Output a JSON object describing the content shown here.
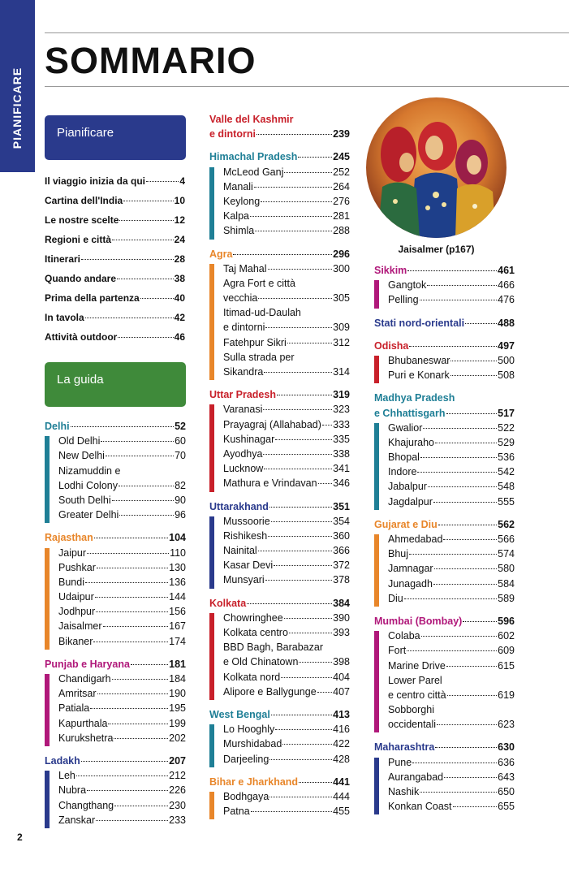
{
  "sidebar_tab": "PIANIFICARE",
  "title": "SOMMARIO",
  "page_number": "2",
  "colors": {
    "pianificare": "#2a3a8c",
    "guida": "#3f8a3a",
    "delhi": "#1f7f96",
    "rajasthan": "#e8862a",
    "punjab": "#b0187a",
    "ladakh": "#2a3a8c",
    "kashmir": "#c8202a",
    "himachal": "#1f7f96",
    "agra": "#e8862a",
    "uttar": "#c8202a",
    "uttarakhand": "#2a3a8c",
    "kolkata": "#c8202a",
    "westbengal": "#1f7f96",
    "bihar": "#e8862a",
    "sikkim": "#b0187a",
    "nordorientali": "#2a3a8c",
    "odisha": "#c8202a",
    "madhya": "#1f7f96",
    "gujarat": "#e8862a",
    "mumbai": "#b0187a",
    "maharashtra": "#2a3a8c"
  },
  "box_pianificare": "Pianificare",
  "box_guida": "La guida",
  "plan_items": [
    {
      "name": "Il viaggio inizia da qui",
      "page": "4"
    },
    {
      "name": "Cartina dell'India",
      "page": "10"
    },
    {
      "name": "Le nostre scelte",
      "page": "12"
    },
    {
      "name": "Regioni e città",
      "page": "24"
    },
    {
      "name": "Itinerari",
      "page": "28"
    },
    {
      "name": "Quando andare",
      "page": "38"
    },
    {
      "name": "Prima della partenza",
      "page": "40"
    },
    {
      "name": "In tavola",
      "page": "42"
    },
    {
      "name": "Attività outdoor",
      "page": "46"
    }
  ],
  "sections": {
    "delhi": {
      "name": "Delhi",
      "page": "52",
      "items": [
        [
          "Old Delhi",
          "60"
        ],
        [
          "New Delhi",
          "70"
        ],
        [
          "Nizamuddin e",
          "",
          1
        ],
        [
          "Lodhi Colony",
          "82"
        ],
        [
          "South Delhi",
          "90"
        ],
        [
          "Greater Delhi",
          "96"
        ]
      ]
    },
    "rajasthan": {
      "name": "Rajasthan",
      "page": "104",
      "items": [
        [
          "Jaipur",
          "110"
        ],
        [
          "Pushkar",
          "130"
        ],
        [
          "Bundi",
          "136"
        ],
        [
          "Udaipur",
          "144"
        ],
        [
          "Jodhpur",
          "156"
        ],
        [
          "Jaisalmer",
          "167"
        ],
        [
          "Bikaner",
          "174"
        ]
      ]
    },
    "punjab": {
      "name": "Punjab e Haryana",
      "page": "181",
      "items": [
        [
          "Chandigarh",
          "184"
        ],
        [
          "Amritsar",
          "190"
        ],
        [
          "Patiala",
          "195"
        ],
        [
          "Kapurthala",
          "199"
        ],
        [
          "Kurukshetra",
          "202"
        ]
      ]
    },
    "ladakh": {
      "name": "Ladakh",
      "page": "207",
      "items": [
        [
          "Leh",
          "212"
        ],
        [
          "Nubra",
          "226"
        ],
        [
          "Changthang",
          "230"
        ],
        [
          "Zanskar",
          "233"
        ]
      ]
    },
    "kashmir": {
      "name1": "Valle del Kashmir",
      "name2": "e dintorni",
      "page": "239"
    },
    "himachal": {
      "name": "Himachal Pradesh",
      "page": "245",
      "items": [
        [
          "McLeod Ganj",
          "252"
        ],
        [
          "Manali",
          "264"
        ],
        [
          "Keylong",
          "276"
        ],
        [
          "Kalpa",
          "281"
        ],
        [
          "Shimla",
          "288"
        ]
      ]
    },
    "agra": {
      "name": "Agra",
      "page": "296",
      "items": [
        [
          "Taj Mahal",
          "300"
        ],
        [
          "Agra Fort e città",
          "",
          1
        ],
        [
          "vecchia",
          "305"
        ],
        [
          "Itimad-ud-Daulah",
          "",
          1
        ],
        [
          "e dintorni",
          "309"
        ],
        [
          "Fatehpur Sikri",
          "312"
        ],
        [
          "Sulla strada per",
          "",
          1
        ],
        [
          "Sikandra",
          "314"
        ]
      ]
    },
    "uttar": {
      "name": "Uttar Pradesh",
      "page": "319",
      "items": [
        [
          "Varanasi",
          "323"
        ],
        [
          "Prayagraj (Allahabad)",
          "333"
        ],
        [
          "Kushinagar",
          "335"
        ],
        [
          "Ayodhya",
          "338"
        ],
        [
          "Lucknow",
          "341"
        ],
        [
          "Mathura e Vrindavan",
          "346"
        ]
      ]
    },
    "uttarakhand": {
      "name": "Uttarakhand",
      "page": "351",
      "items": [
        [
          "Mussoorie",
          "354"
        ],
        [
          "Rishikesh",
          "360"
        ],
        [
          "Nainital",
          "366"
        ],
        [
          "Kasar Devi",
          "372"
        ],
        [
          "Munsyari",
          "378"
        ]
      ]
    },
    "kolkata": {
      "name": "Kolkata",
      "page": "384",
      "items": [
        [
          "Chowringhee",
          "390"
        ],
        [
          "Kolkata centro",
          "393"
        ],
        [
          "BBD Bagh, Barabazar",
          "",
          1
        ],
        [
          "e Old Chinatown",
          "398"
        ],
        [
          "Kolkata nord",
          "404"
        ],
        [
          "Alipore e Ballygunge",
          "407"
        ]
      ]
    },
    "westbengal": {
      "name": "West Bengal",
      "page": "413",
      "items": [
        [
          "Lo Hooghly",
          "416"
        ],
        [
          "Murshidabad",
          "422"
        ],
        [
          "Darjeeling",
          "428"
        ]
      ]
    },
    "bihar": {
      "name": "Bihar e Jharkhand",
      "page": "441",
      "items": [
        [
          "Bodhgaya",
          "444"
        ],
        [
          "Patna",
          "455"
        ]
      ]
    },
    "sikkim": {
      "name": "Sikkim",
      "page": "461",
      "items": [
        [
          "Gangtok",
          "466"
        ],
        [
          "Pelling",
          "476"
        ]
      ]
    },
    "nordorientali": {
      "name": "Stati nord-orientali",
      "page": "488"
    },
    "odisha": {
      "name": "Odisha",
      "page": "497",
      "items": [
        [
          "Bhubaneswar",
          "500"
        ],
        [
          "Puri e Konark",
          "508"
        ]
      ]
    },
    "madhya": {
      "name1": "Madhya Pradesh",
      "name2": "e Chhattisgarh",
      "page": "517",
      "items": [
        [
          "Gwalior",
          "522"
        ],
        [
          "Khajuraho",
          "529"
        ],
        [
          "Bhopal",
          "536"
        ],
        [
          "Indore",
          "542"
        ],
        [
          "Jabalpur",
          "548"
        ],
        [
          "Jagdalpur",
          "555"
        ]
      ]
    },
    "gujarat": {
      "name": "Gujarat e Diu",
      "page": "562",
      "items": [
        [
          "Ahmedabad",
          "566"
        ],
        [
          "Bhuj",
          "574"
        ],
        [
          "Jamnagar",
          "580"
        ],
        [
          "Junagadh",
          "584"
        ],
        [
          "Diu",
          "589"
        ]
      ]
    },
    "mumbai": {
      "name": "Mumbai (Bombay)",
      "page": "596",
      "items": [
        [
          "Colaba",
          "602"
        ],
        [
          "Fort",
          "609"
        ],
        [
          "Marine Drive",
          "615"
        ],
        [
          "Lower Parel",
          "",
          1
        ],
        [
          "e centro città",
          "619"
        ],
        [
          "Sobborghi",
          "",
          1
        ],
        [
          "occidentali",
          "623"
        ]
      ]
    },
    "maharashtra": {
      "name": "Maharashtra",
      "page": "630",
      "items": [
        [
          "Pune",
          "636"
        ],
        [
          "Aurangabad",
          "643"
        ],
        [
          "Nashik",
          "650"
        ],
        [
          "Konkan Coast",
          "655"
        ]
      ]
    }
  },
  "photo_caption": "Jaisalmer (p167)"
}
